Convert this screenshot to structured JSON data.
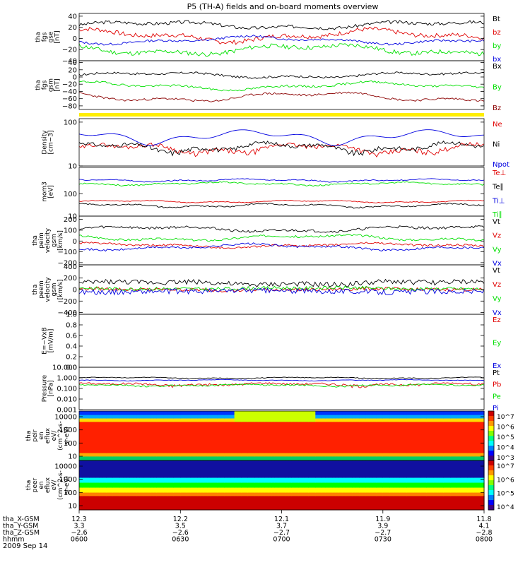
{
  "title": "P5 (TH-A) fields and on-board moments overview",
  "date_label": "2009 Sep 14",
  "colors": {
    "black": "#000000",
    "red": "#e00000",
    "green": "#00e000",
    "blue": "#0000e0",
    "darkred": "#8b0000",
    "yellow": "#ffee00"
  },
  "chart_data": [
    {
      "type": "line",
      "name": "panel-fgs-gse",
      "ylabel": [
        "tha",
        "fgs",
        "gse",
        "[nT]"
      ],
      "ylim": [
        -40,
        45
      ],
      "yticks": [
        "40",
        "20",
        "0",
        "−20",
        "−40"
      ],
      "ytick_values": [
        40,
        20,
        0,
        -20,
        -40
      ],
      "series": [
        {
          "name": "Bt",
          "color": "#000000",
          "base": 24,
          "amp": 5,
          "noise": 3,
          "seed": 3
        },
        {
          "name": "bz",
          "color": "#e00000",
          "base": 5,
          "amp": 8,
          "noise": 4,
          "seed": 7
        },
        {
          "name": "by",
          "color": "#00e000",
          "base": -20,
          "amp": 7,
          "noise": 4,
          "seed": 11
        },
        {
          "name": "bx",
          "color": "#0000e0",
          "base": -3,
          "amp": 5,
          "noise": 2,
          "seed": 13
        }
      ]
    },
    {
      "type": "line",
      "name": "panel-fgs-gsm",
      "ylabel": [
        "tha",
        "fgs",
        "gsm",
        "[nT]"
      ],
      "ylim": [
        -90,
        45
      ],
      "yticks": [
        "40",
        "20",
        "0",
        "−20",
        "−40",
        "−60",
        "−80"
      ],
      "ytick_values": [
        40,
        20,
        0,
        -20,
        -40,
        -60,
        -80
      ],
      "series": [
        {
          "name": "Bx",
          "color": "#000000",
          "base": 5,
          "amp": 6,
          "noise": 3,
          "seed": 17
        },
        {
          "name": "By",
          "color": "#00e000",
          "base": -25,
          "amp": 8,
          "noise": 3,
          "seed": 19
        },
        {
          "name": "Bz",
          "color": "#8b0000",
          "base": -55,
          "amp": 10,
          "noise": 3,
          "seed": 23
        }
      ]
    },
    {
      "type": "line",
      "name": "panel-density",
      "log": true,
      "ylabel": [
        "Density",
        "[cm−3]"
      ],
      "ylim": [
        10,
        120
      ],
      "yticks": [
        "100",
        "10"
      ],
      "ytick_values": [
        100,
        10
      ],
      "series": [
        {
          "name": "Ne",
          "color": "#e00000",
          "base": 25,
          "amp": 5,
          "noise": 3,
          "seed": 29
        },
        {
          "name": "Ni",
          "color": "#000000",
          "base": 27,
          "amp": 5,
          "noise": 3,
          "seed": 31
        },
        {
          "name": "Npot",
          "color": "#0000e0",
          "base": 48,
          "amp": 12,
          "noise": 0,
          "seed": 37
        }
      ]
    },
    {
      "type": "line",
      "name": "panel-temperature",
      "log": true,
      "ylabel": [
        "mom3",
        "[eV]"
      ],
      "ylim": [
        10,
        1500
      ],
      "yticks": [
        "100",
        "10"
      ],
      "ytick_values": [
        100,
        10
      ],
      "series": [
        {
          "name": "Te⊥",
          "color": "#e00000",
          "base": 45,
          "amp": 4,
          "noise": 2,
          "seed": 41
        },
        {
          "name": "Te∥",
          "color": "#000000",
          "base": 30,
          "amp": 4,
          "noise": 2,
          "seed": 43
        },
        {
          "name": "Ti⊥",
          "color": "#0000e0",
          "base": 400,
          "amp": 40,
          "noise": 20,
          "seed": 47
        },
        {
          "name": "Ti∥",
          "color": "#00e000",
          "base": 280,
          "amp": 30,
          "noise": 20,
          "seed": 53
        }
      ]
    },
    {
      "type": "line",
      "name": "panel-peim-velocity",
      "ylabel": [
        "tha",
        "peim",
        "velocity",
        "gsm",
        "[km/s]"
      ],
      "ylim": [
        -220,
        230
      ],
      "yticks": [
        "200",
        "100",
        "0",
        "−100",
        "−200"
      ],
      "ytick_values": [
        200,
        100,
        0,
        -100,
        -200
      ],
      "series": [
        {
          "name": "Vt",
          "color": "#000000",
          "base": 110,
          "amp": 20,
          "noise": 12,
          "seed": 59
        },
        {
          "name": "Vz",
          "color": "#e00000",
          "base": -40,
          "amp": 15,
          "noise": 10,
          "seed": 61
        },
        {
          "name": "Vy",
          "color": "#00e000",
          "base": 30,
          "amp": 20,
          "noise": 10,
          "seed": 67
        },
        {
          "name": "Vx",
          "color": "#0000e0",
          "base": -55,
          "amp": 20,
          "noise": 10,
          "seed": 71
        }
      ]
    },
    {
      "type": "line",
      "name": "panel-peem-velocity",
      "ylabel": [
        "tha",
        "peem",
        "velocity",
        "gsm",
        "[km/s]"
      ],
      "ylim": [
        -430,
        430
      ],
      "yticks": [
        "400",
        "200",
        "0",
        "−200",
        "−400"
      ],
      "ytick_values": [
        400,
        200,
        0,
        -200,
        -400
      ],
      "series": [
        {
          "name": "Vt",
          "color": "#000000",
          "base": 110,
          "amp": 25,
          "noise": 45,
          "seed": 73
        },
        {
          "name": "Vz",
          "color": "#e00000",
          "base": 0,
          "amp": 10,
          "noise": 30,
          "seed": 79
        },
        {
          "name": "Vy",
          "color": "#00e000",
          "base": 20,
          "amp": 10,
          "noise": 30,
          "seed": 83
        },
        {
          "name": "Vx",
          "color": "#0000e0",
          "base": -30,
          "amp": 10,
          "noise": 45,
          "seed": 89
        }
      ]
    },
    {
      "type": "line",
      "name": "panel-efield",
      "ylabel": [
        "E=−VxB",
        "[mV/m]"
      ],
      "ylim": [
        0,
        1.0
      ],
      "yticks": [
        "1.0",
        "0.8",
        "0.6",
        "0.4",
        "0.2",
        "0.0"
      ],
      "ytick_values": [
        1.0,
        0.8,
        0.6,
        0.4,
        0.2,
        0.0
      ],
      "series": [
        {
          "name": "Ez",
          "color": "#e00000"
        },
        {
          "name": "Ey",
          "color": "#00e000"
        },
        {
          "name": "Ex",
          "color": "#0000e0"
        }
      ]
    },
    {
      "type": "line",
      "name": "panel-pressure",
      "log": true,
      "ylabel": [
        "Pressure",
        "[nPa]"
      ],
      "ylim": [
        0.001,
        10
      ],
      "yticks": [
        "10.000",
        "1.000",
        "0.100",
        "0.010",
        "0.001"
      ],
      "ytick_values": [
        10,
        1,
        0.1,
        0.01,
        0.001
      ],
      "series": [
        {
          "name": "Pt",
          "color": "#000000",
          "base": 1.0,
          "amp": 0.1,
          "noise": 0.08,
          "seed": 97
        },
        {
          "name": "Pb",
          "color": "#e00000",
          "base": 0.25,
          "amp": 0.05,
          "noise": 0.06,
          "seed": 101
        },
        {
          "name": "Pe",
          "color": "#00e000",
          "base": 0.2,
          "amp": 0.03,
          "noise": 0.03,
          "seed": 103
        },
        {
          "name": "Pi",
          "color": "#0000e0",
          "base": 0.6,
          "amp": 0.05,
          "noise": 0.03,
          "seed": 107
        }
      ]
    },
    {
      "type": "heatmap",
      "name": "panel-peir-spectrogram",
      "ylabel": [
        "tha",
        "peir",
        "en",
        "eflux",
        "eV/",
        "(cm^2-s-",
        "sr-eV)"
      ],
      "yticks": [
        "10000",
        "1000",
        "100",
        "10"
      ],
      "ytick_values": [
        10000,
        1000,
        100,
        10
      ],
      "colorbar_ticks": [
        "10^7",
        "10^6",
        "10^5",
        "10^4",
        "10^3"
      ]
    },
    {
      "type": "heatmap",
      "name": "panel-peer-spectrogram",
      "ylabel": [
        "tha",
        "peer",
        "en",
        "eflux",
        "eV/",
        "(cm^2-s-",
        "sr-eV)"
      ],
      "yticks": [
        "10000",
        "1000",
        "100",
        "10"
      ],
      "ytick_values": [
        10000,
        1000,
        100,
        10
      ],
      "colorbar_ticks": [
        "10^7",
        "10^6",
        "10^5",
        "10^4"
      ]
    }
  ],
  "xaxis": {
    "row_labels": [
      "tha_X-GSM",
      "tha_Y-GSM",
      "tha_Z-GSM",
      "hhmm"
    ],
    "columns": [
      {
        "values": [
          "12.3",
          "3.3",
          "−2.6",
          "0600"
        ]
      },
      {
        "values": [
          "12.2",
          "3.5",
          "−2.6",
          "0630"
        ]
      },
      {
        "values": [
          "12.1",
          "3.7",
          "−2.7",
          "0700"
        ]
      },
      {
        "values": [
          "11.9",
          "3.9",
          "−2.7",
          "0730"
        ]
      },
      {
        "values": [
          "11.8",
          "4.1",
          "−2.8",
          "0800"
        ]
      }
    ]
  }
}
